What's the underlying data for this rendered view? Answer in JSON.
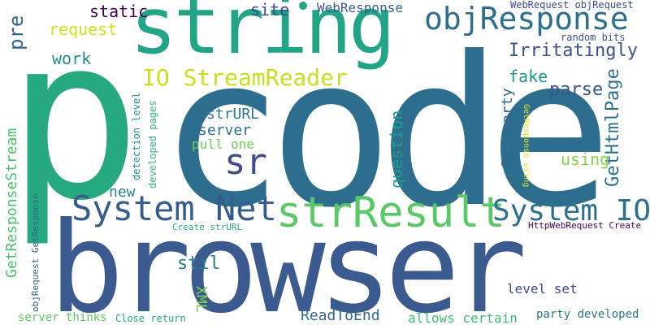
{
  "cloud": {
    "words": [
      {
        "text": "code",
        "color": "#2d6e8e"
      },
      {
        "text": "p",
        "color": "#27a97f"
      },
      {
        "text": "browser",
        "color": "#3b5a8f"
      },
      {
        "text": "string",
        "color": "#22a486"
      },
      {
        "text": "objResponse",
        "color": "#2e6f8e"
      },
      {
        "text": "strResult",
        "color": "#5ac864"
      },
      {
        "text": "System Net",
        "color": "#365c8d"
      },
      {
        "text": "System IO",
        "color": "#2c718e"
      },
      {
        "text": "sr",
        "color": "#3e4c8a"
      },
      {
        "text": "IO StreamReader",
        "color": "#c8e020"
      },
      {
        "text": "Irritatingly",
        "color": "#3b518b"
      },
      {
        "text": "parse",
        "color": "#39568c"
      },
      {
        "text": "fake",
        "color": "#1f958b"
      },
      {
        "text": "GetHtmlPage",
        "color": "#2c728e"
      },
      {
        "text": "pre",
        "color": "#33628d"
      },
      {
        "text": "static",
        "color": "#440154"
      },
      {
        "text": "site",
        "color": "#3e4a89"
      },
      {
        "text": "WebResponse",
        "color": "#355f8d"
      },
      {
        "text": "request",
        "color": "#d0e11c"
      },
      {
        "text": "work",
        "color": "#238a8d"
      },
      {
        "text": "strURL",
        "color": "#2a788e"
      },
      {
        "text": "server",
        "color": "#2d708e"
      },
      {
        "text": "pull one",
        "color": "#6ece58"
      },
      {
        "text": "question",
        "color": "#1fa088"
      },
      {
        "text": "3rd party",
        "color": "#31668e"
      },
      {
        "text": "using",
        "color": "#84d44b"
      },
      {
        "text": "new",
        "color": "#25858e"
      },
      {
        "text": "stil",
        "color": "#287c8e"
      },
      {
        "text": "GetResponseStream",
        "color": "#4ac16d"
      },
      {
        "text": "XML",
        "color": "#7ad151"
      },
      {
        "text": "level set",
        "color": "#3e4989"
      },
      {
        "text": "ReadToEnd",
        "color": "#31688e"
      },
      {
        "text": "allows certain",
        "color": "#3dbc74"
      },
      {
        "text": "party developed",
        "color": "#2a788e"
      },
      {
        "text": "server thinks",
        "color": "#5ec962"
      },
      {
        "text": "Close return",
        "color": "#22a785"
      },
      {
        "text": "Create strURL",
        "color": "#26ad81"
      },
      {
        "text": "HttpWebRequest Create",
        "color": "#440154"
      },
      {
        "text": "WebRequest objRequest",
        "color": "#3e4a89"
      },
      {
        "text": "random bits",
        "color": "#3b528b"
      },
      {
        "text": "detection level",
        "color": "#20928c"
      },
      {
        "text": "developed pages",
        "color": "#34b679"
      },
      {
        "text": "GetResponse using",
        "color": "#e5e419"
      },
      {
        "text": "objRequest GetResponse",
        "color": "#33638d"
      }
    ]
  }
}
